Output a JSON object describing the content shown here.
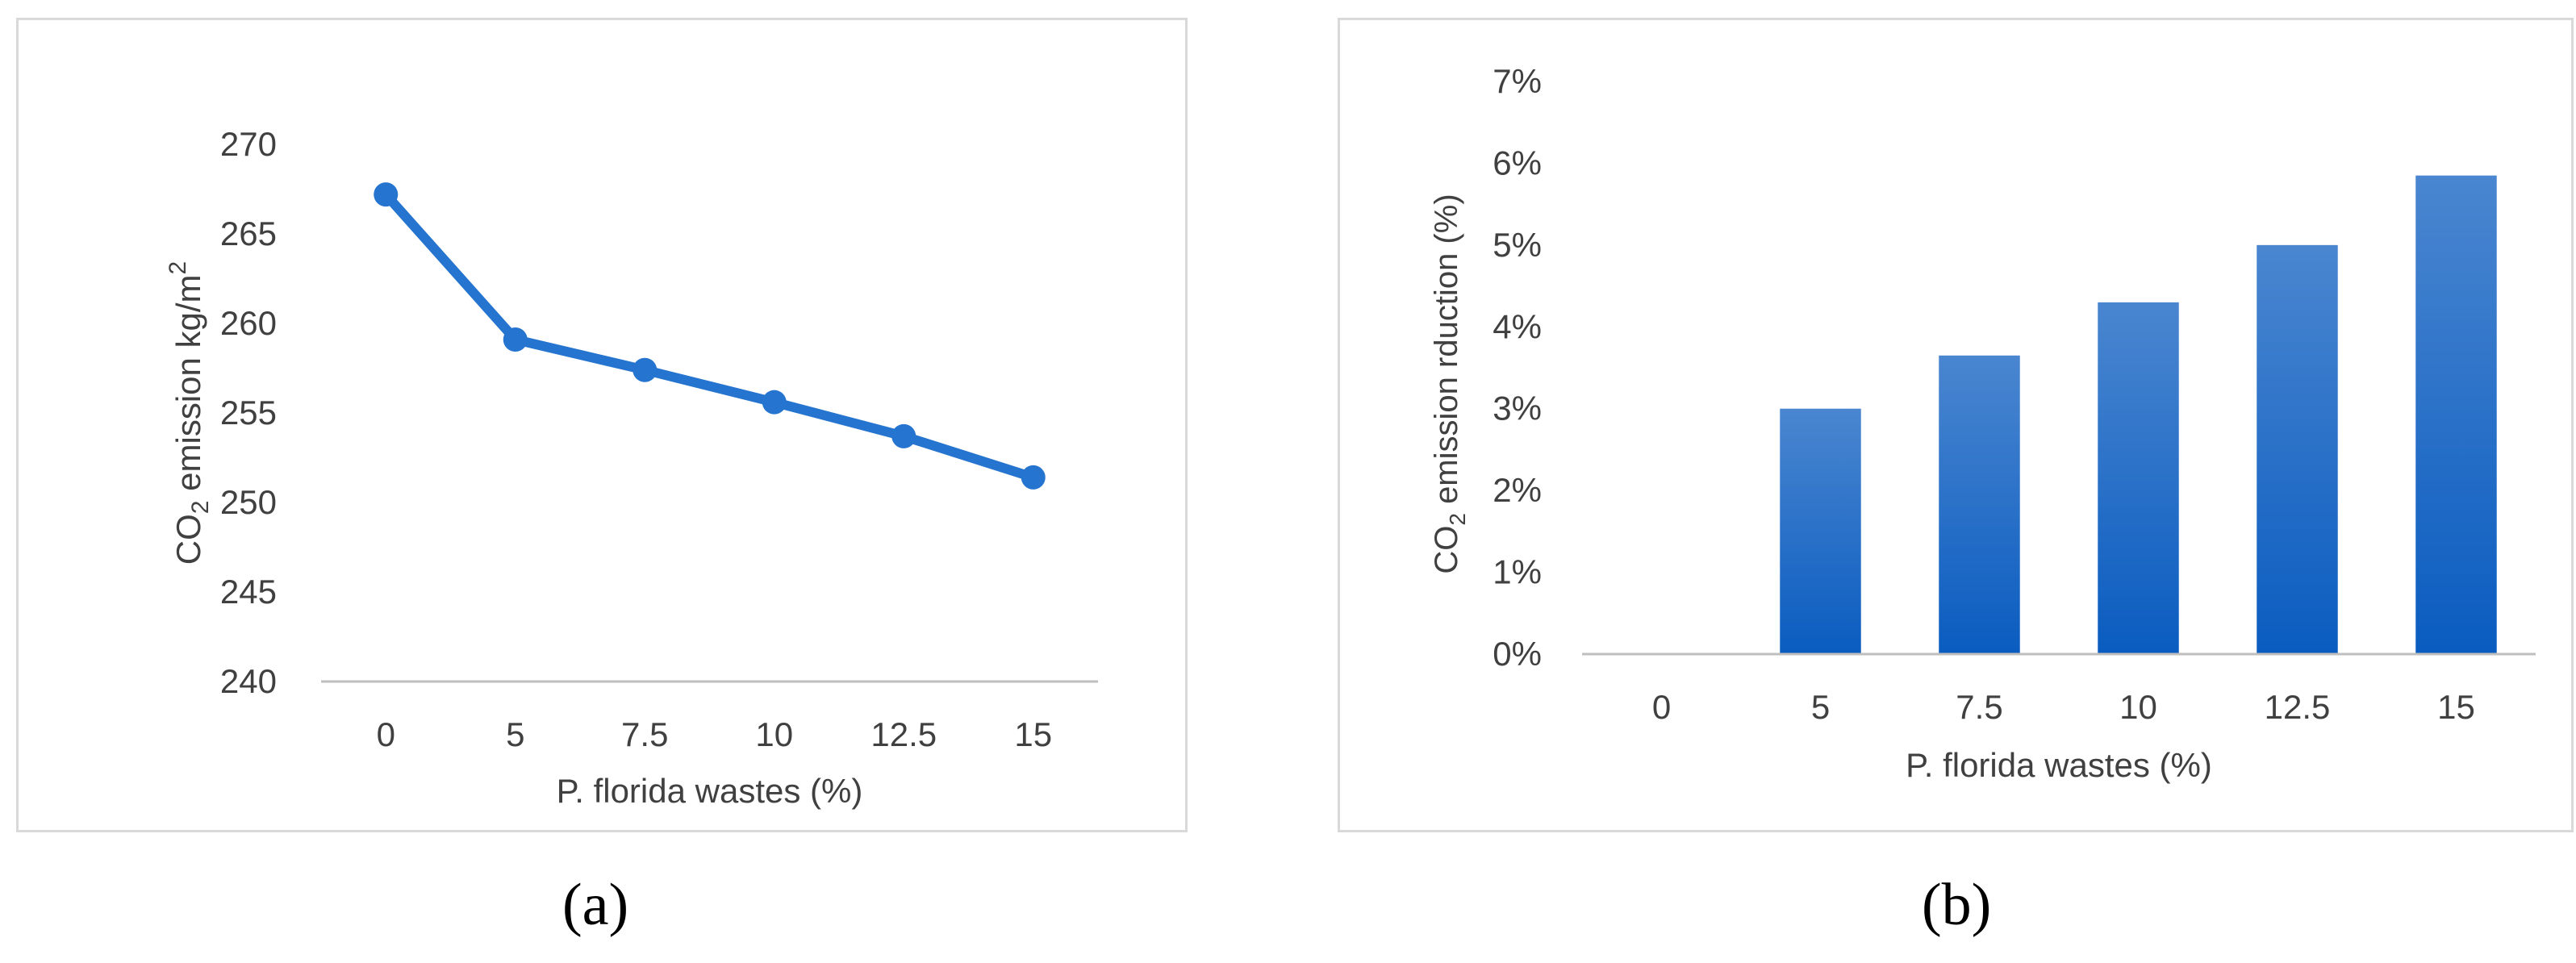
{
  "chart_data": [
    {
      "type": "line",
      "categories": [
        "0",
        "5",
        "7.5",
        "10",
        "12.5",
        "15"
      ],
      "values": [
        267.2,
        259.1,
        257.4,
        255.6,
        253.7,
        251.4
      ],
      "series_color": "#2574cf",
      "ylim": [
        240,
        270
      ],
      "yticks": [
        "240",
        "245",
        "250",
        "255",
        "260",
        "265",
        "270"
      ],
      "xlabel": "P. florida wastes (%)",
      "ylabel_prefix": "CO",
      "ylabel_sub": "2",
      "ylabel_suffix": " emission kg/m",
      "ylabel_sup": "2",
      "grid": false,
      "caption": "(a)"
    },
    {
      "type": "bar",
      "categories": [
        "0",
        "5",
        "7.5",
        "10",
        "12.5",
        "15"
      ],
      "values": [
        0,
        3.0,
        3.65,
        4.3,
        5.0,
        5.85
      ],
      "value_unit": "%",
      "bar_color_top": "#4a86d0",
      "bar_color_bottom": "#0a5cc0",
      "ylim": [
        0,
        7
      ],
      "yticks": [
        "0%",
        "1%",
        "2%",
        "3%",
        "4%",
        "5%",
        "6%",
        "7%"
      ],
      "xlabel": "P. florida wastes (%)",
      "ylabel_prefix": "CO",
      "ylabel_sub": "2",
      "ylabel_suffix": " emission rduction (%)",
      "grid": false,
      "caption": "(b)"
    }
  ]
}
